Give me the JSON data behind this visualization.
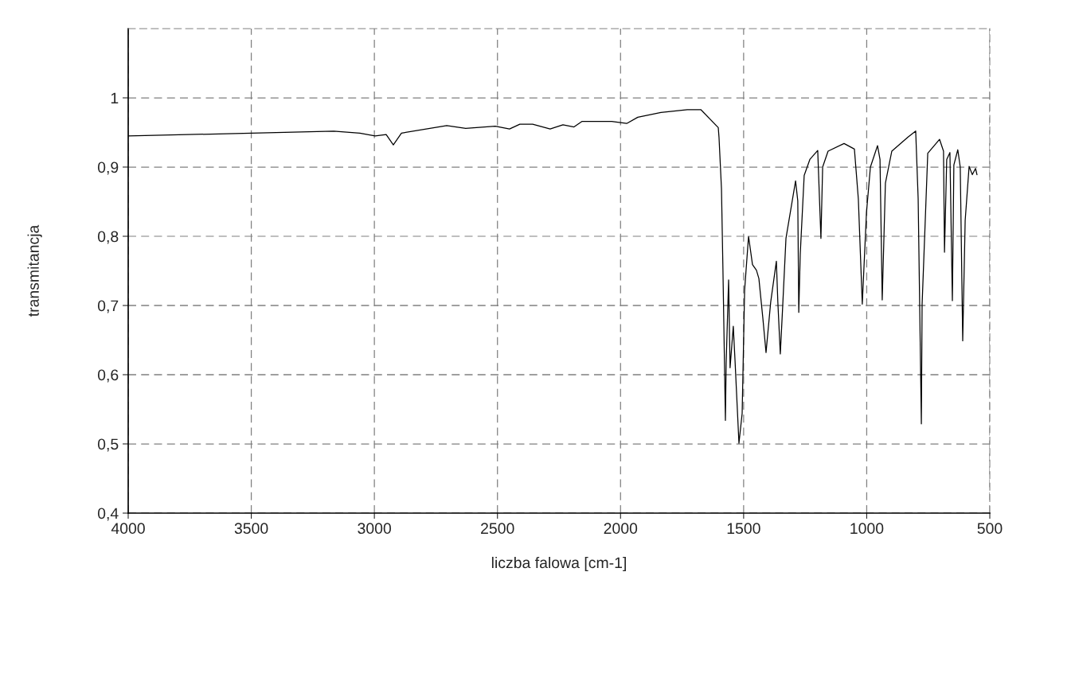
{
  "chart_data": {
    "type": "line",
    "xlabel": "liczba falowa [cm-1]",
    "ylabel": "transmitancja",
    "xlim": [
      4000,
      500
    ],
    "ylim": [
      0.4,
      1.1
    ],
    "xticks": [
      4000,
      3500,
      3000,
      2500,
      2000,
      1500,
      1000,
      500
    ],
    "yticks": [
      {
        "value": 0.4,
        "label": "0,4"
      },
      {
        "value": 0.5,
        "label": "0,5"
      },
      {
        "value": 0.6,
        "label": "0,6"
      },
      {
        "value": 0.7,
        "label": "0,7"
      },
      {
        "value": 0.8,
        "label": "0,8"
      },
      {
        "value": 0.9,
        "label": "0,9"
      },
      {
        "value": 1,
        "label": "1"
      }
    ],
    "grid": true,
    "line_style": "solid",
    "marker": "none",
    "series": [
      {
        "color": "#000000",
        "x": [
          4000,
          3499,
          3165,
          3059,
          2997,
          2952,
          2923,
          2890,
          2706,
          2629,
          2509,
          2451,
          2409,
          2357,
          2286,
          2234,
          2189,
          2156,
          2036,
          1975,
          1930,
          1836,
          1729,
          1674,
          1603,
          1600,
          1590,
          1584,
          1574,
          1571,
          1561,
          1555,
          1542,
          1535,
          1519,
          1506,
          1496,
          1480,
          1464,
          1448,
          1438,
          1422,
          1409,
          1390,
          1367,
          1361,
          1351,
          1341,
          1328,
          1289,
          1280,
          1276,
          1270,
          1254,
          1231,
          1199,
          1186,
          1179,
          1157,
          1092,
          1050,
          1034,
          1018,
          1001,
          985,
          956,
          946,
          937,
          924,
          898,
          833,
          801,
          791,
          778,
          775,
          752,
          704,
          688,
          684,
          675,
          662,
          652,
          646,
          630,
          620,
          610,
          600,
          584,
          571,
          558,
          552
        ],
        "values": [
          0.945,
          0.949,
          0.952,
          0.949,
          0.945,
          0.947,
          0.932,
          0.949,
          0.96,
          0.956,
          0.959,
          0.955,
          0.962,
          0.962,
          0.955,
          0.961,
          0.958,
          0.966,
          0.966,
          0.963,
          0.972,
          0.979,
          0.983,
          0.983,
          0.957,
          0.943,
          0.869,
          0.751,
          0.534,
          0.616,
          0.737,
          0.61,
          0.67,
          0.621,
          0.501,
          0.544,
          0.722,
          0.8,
          0.759,
          0.751,
          0.739,
          0.682,
          0.632,
          0.705,
          0.764,
          0.705,
          0.63,
          0.701,
          0.797,
          0.88,
          0.851,
          0.69,
          0.774,
          0.888,
          0.911,
          0.924,
          0.797,
          0.9,
          0.923,
          0.934,
          0.926,
          0.854,
          0.702,
          0.834,
          0.9,
          0.931,
          0.911,
          0.708,
          0.877,
          0.923,
          0.943,
          0.952,
          0.854,
          0.529,
          0.701,
          0.92,
          0.94,
          0.923,
          0.777,
          0.911,
          0.921,
          0.707,
          0.903,
          0.925,
          0.9,
          0.649,
          0.823,
          0.901,
          0.889,
          0.898,
          0.889
        ]
      }
    ]
  }
}
